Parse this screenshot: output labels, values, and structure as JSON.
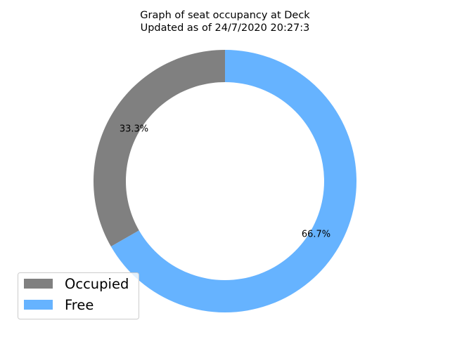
{
  "chart_data": {
    "type": "pie",
    "variant": "donut",
    "title": "Graph of seat occupancy at Deck\nUpdated as of 24/7/2020 20:27:3",
    "categories": [
      "Occupied",
      "Free"
    ],
    "values": [
      33.3,
      66.7
    ],
    "labels": [
      "33.3%",
      "66.7%"
    ],
    "colors": [
      "#808080",
      "#66b3ff"
    ],
    "start_angle_deg": 90,
    "direction": "counterclockwise",
    "legend": {
      "placement": "lower-left",
      "entries": [
        "Occupied",
        "Free"
      ]
    }
  }
}
